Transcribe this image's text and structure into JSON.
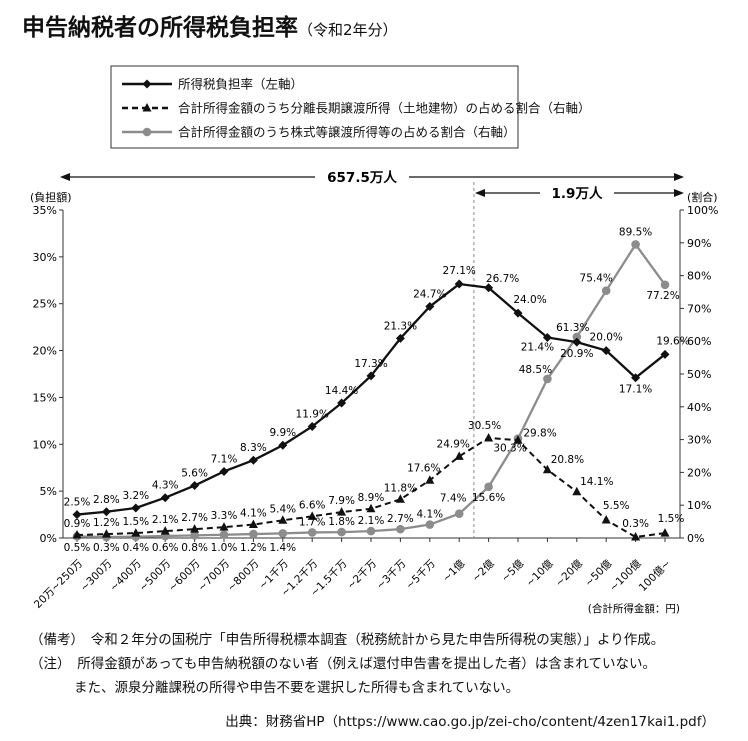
{
  "title": "申告納税者の所得税負担率",
  "title_suffix": "（令和2年分）",
  "chart_data": {
    "type": "line",
    "categories": [
      "20万~250万",
      "~300万",
      "~400万",
      "~500万",
      "~600万",
      "~700万",
      "~800万",
      "~1千万",
      "~1.2千万",
      "~1.5千万",
      "~2千万",
      "~3千万",
      "~5千万",
      "~1億",
      "~2億",
      "~5億",
      "~10億",
      "~20億",
      "~50億",
      "~100億",
      "100億~"
    ],
    "left_axis": {
      "label": "(負担額)",
      "ylim": [
        0,
        35
      ],
      "ticks": [
        "0%",
        "5%",
        "10%",
        "15%",
        "20%",
        "25%",
        "30%",
        "35%"
      ]
    },
    "right_axis": {
      "label": "(割合)",
      "ylim": [
        0,
        100
      ],
      "ticks": [
        "0%",
        "10%",
        "20%",
        "30%",
        "40%",
        "50%",
        "60%",
        "70%",
        "80%",
        "90%",
        "100%"
      ]
    },
    "x_unit_label": "(合計所得金額：円)",
    "legend": [
      "所得税負担率（左軸）",
      "合計所得金額のうち分離長期譲渡所得（土地建物）の占める割合（右軸）",
      "合計所得金額のうち株式等譲渡所得等の占める割合（右軸）"
    ],
    "series": [
      {
        "name": "所得税負担率（左軸）",
        "axis": "left",
        "color": "#111111",
        "style": "solid-diamond",
        "values": [
          2.5,
          2.8,
          3.2,
          4.3,
          5.6,
          7.1,
          8.3,
          9.9,
          11.9,
          14.4,
          17.3,
          21.3,
          24.7,
          27.1,
          26.7,
          24.0,
          21.4,
          20.9,
          20.0,
          17.1,
          19.6
        ],
        "labels": [
          "2.5%",
          "2.8%",
          "3.2%",
          "4.3%",
          "5.6%",
          "7.1%",
          "8.3%",
          "9.9%",
          "11.9%",
          "14.4%",
          "17.3%",
          "21.3%",
          "24.7%",
          "27.1%",
          "26.7%",
          "24.0%",
          "21.4%",
          "20.9%",
          "20.0%",
          "17.1%",
          "19.6%"
        ]
      },
      {
        "name": "合計所得金額のうち分離長期譲渡所得（土地建物）の占める割合（右軸）",
        "axis": "right",
        "color": "#111111",
        "style": "dashed-triangle",
        "values": [
          0.9,
          1.2,
          1.5,
          2.1,
          2.7,
          3.3,
          4.1,
          5.4,
          6.6,
          7.9,
          8.9,
          11.8,
          17.6,
          24.9,
          30.5,
          29.8,
          20.8,
          14.1,
          5.5,
          0.3,
          1.5
        ],
        "labels": [
          "0.9%",
          "1.2%",
          "1.5%",
          "2.1%",
          "2.7%",
          "3.3%",
          "4.1%",
          "5.4%",
          "6.6%",
          "7.9%",
          "8.9%",
          "11.8%",
          "17.6%",
          "24.9%",
          "30.5%",
          "29.8%",
          "20.8%",
          "14.1%",
          "5.5%",
          "0.3%",
          "1.5%"
        ]
      },
      {
        "name": "合計所得金額のうち株式等譲渡所得等の占める割合（右軸）",
        "axis": "right",
        "color": "#8c8c8c",
        "style": "solid-circle",
        "values": [
          0.5,
          0.3,
          0.4,
          0.6,
          0.8,
          1.0,
          1.2,
          1.4,
          1.7,
          1.8,
          2.1,
          2.7,
          4.1,
          7.4,
          15.6,
          30.3,
          48.5,
          61.3,
          75.4,
          89.5,
          77.2
        ],
        "labels": [
          "0.5%",
          "0.3%",
          "0.4%",
          "0.6%",
          "0.8%",
          "1.0%",
          "1.2%",
          "1.4%",
          "1.7%",
          "1.8%",
          "2.1%",
          "2.7%",
          "4.1%",
          "7.4%",
          "15.6%",
          "30.3%",
          "48.5%",
          "61.3%",
          "75.4%",
          "89.5%",
          "77.2%"
        ]
      }
    ],
    "annotations": {
      "total_count": "657.5万人",
      "over_1oku_count": "1.9万人"
    }
  },
  "notes": {
    "biko": "（備考）　令和２年分の国税庁「申告所得税標本調査（税務統計から見た申告所得税の実態）」より作成。",
    "chu1": "（注）　所得金額があっても申告納税額のない者（例えば還付申告書を提出した者）は含まれていない。",
    "chu2": "また、源泉分離課税の所得や申告不要を選択した所得も含まれていない。",
    "source": "出典：財務省HP（https://www.cao.go.jp/zei-cho/content/4zen17kai1.pdf）"
  }
}
